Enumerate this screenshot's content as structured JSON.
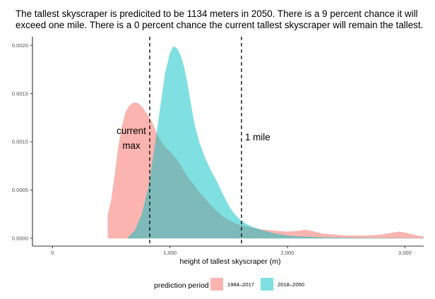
{
  "chart_data": {
    "type": "area",
    "title_lines": [
      "The tallest skyscraper is predicited to be 1134 meters in 2050. There is a 9 percent chance it will",
      "exceed one mile. There is a 0 percent chance the current tallest skyscraper will remain the tallest."
    ],
    "xlabel": "height of tallest skyscraper (m)",
    "ylabel": "",
    "xlim": [
      -170,
      3160
    ],
    "ylim": [
      -8e-05,
      0.00209
    ],
    "x_ticks": [
      0,
      1000,
      2000,
      3000
    ],
    "x_tick_labels": [
      "0",
      "1,000",
      "2,000",
      "3,000"
    ],
    "y_ticks": [
      0,
      0.0005,
      0.001,
      0.0015,
      0.002
    ],
    "y_tick_labels": [
      "0.0000",
      "0.0005",
      "0.0010",
      "0.0015",
      "0.0020"
    ],
    "grid": false,
    "legend": {
      "title": "prediction period",
      "placement": "bottom"
    },
    "series": [
      {
        "name": "1984–2017",
        "color": "#F8766D",
        "fill_opacity": 0.55,
        "points": [
          [
            470,
            0
          ],
          [
            470,
            0.00024
          ],
          [
            500,
            0.0004
          ],
          [
            530,
            0.00066
          ],
          [
            560,
            0.00095
          ],
          [
            590,
            0.00115
          ],
          [
            620,
            0.0013
          ],
          [
            650,
            0.00137
          ],
          [
            680,
            0.0014
          ],
          [
            710,
            0.00141
          ],
          [
            740,
            0.00139
          ],
          [
            770,
            0.00135
          ],
          [
            800,
            0.0013
          ],
          [
            850,
            0.0012
          ],
          [
            900,
            0.00106
          ],
          [
            950,
            0.00096
          ],
          [
            1000,
            0.0009
          ],
          [
            1050,
            0.00083
          ],
          [
            1100,
            0.00074
          ],
          [
            1150,
            0.00064
          ],
          [
            1200,
            0.00056
          ],
          [
            1250,
            0.00048
          ],
          [
            1300,
            0.00041
          ],
          [
            1350,
            0.00034
          ],
          [
            1400,
            0.00028
          ],
          [
            1450,
            0.00023
          ],
          [
            1500,
            0.00019
          ],
          [
            1550,
            0.00016
          ],
          [
            1600,
            0.00014
          ],
          [
            1700,
            0.00011
          ],
          [
            1800,
            9e-05
          ],
          [
            1900,
            8e-05
          ],
          [
            2000,
            7e-05
          ],
          [
            2100,
            8e-05
          ],
          [
            2150,
            9e-05
          ],
          [
            2200,
            8e-05
          ],
          [
            2300,
            5e-05
          ],
          [
            2400,
            4e-05
          ],
          [
            2500,
            3e-05
          ],
          [
            2600,
            3e-05
          ],
          [
            2700,
            3e-05
          ],
          [
            2800,
            4e-05
          ],
          [
            2900,
            6e-05
          ],
          [
            2950,
            7e-05
          ],
          [
            3000,
            6e-05
          ],
          [
            3100,
            3e-05
          ],
          [
            3160,
            2e-05
          ],
          [
            3160,
            0
          ]
        ]
      },
      {
        "name": "2018–2050",
        "color": "#00BFC4",
        "fill_opacity": 0.5,
        "points": [
          [
            640,
            0
          ],
          [
            640,
            1e-05
          ],
          [
            700,
            8e-05
          ],
          [
            760,
            0.00025
          ],
          [
            820,
            0.00055
          ],
          [
            870,
            0.00095
          ],
          [
            920,
            0.00138
          ],
          [
            960,
            0.00172
          ],
          [
            1000,
            0.00192
          ],
          [
            1030,
            0.00199
          ],
          [
            1060,
            0.00197
          ],
          [
            1090,
            0.0019
          ],
          [
            1120,
            0.00178
          ],
          [
            1150,
            0.0016
          ],
          [
            1180,
            0.00138
          ],
          [
            1210,
            0.00118
          ],
          [
            1250,
            0.001
          ],
          [
            1300,
            0.00083
          ],
          [
            1350,
            0.0007
          ],
          [
            1400,
            0.00059
          ],
          [
            1450,
            0.00046
          ],
          [
            1500,
            0.00034
          ],
          [
            1550,
            0.00025
          ],
          [
            1600,
            0.00019
          ],
          [
            1650,
            0.00015
          ],
          [
            1700,
            0.00012
          ],
          [
            1800,
            8e-05
          ],
          [
            1900,
            5e-05
          ],
          [
            2000,
            3e-05
          ],
          [
            2100,
            2e-05
          ],
          [
            2200,
            1.5e-05
          ],
          [
            2400,
            1e-05
          ],
          [
            2700,
            5e-06
          ],
          [
            3000,
            3e-06
          ],
          [
            3160,
            2e-06
          ],
          [
            3160,
            0
          ]
        ]
      }
    ],
    "annotations": [
      {
        "label": "current max",
        "lines": [
          "current",
          "max"
        ],
        "x": 828,
        "linestyle": "dashed"
      },
      {
        "label": "1 mile",
        "lines": [
          "1 mile"
        ],
        "x": 1609,
        "linestyle": "dashed"
      }
    ],
    "colors": {
      "axis": "#333333",
      "tick_text": "#4d4d4d",
      "text": "#000000",
      "background": "#ffffff"
    }
  }
}
